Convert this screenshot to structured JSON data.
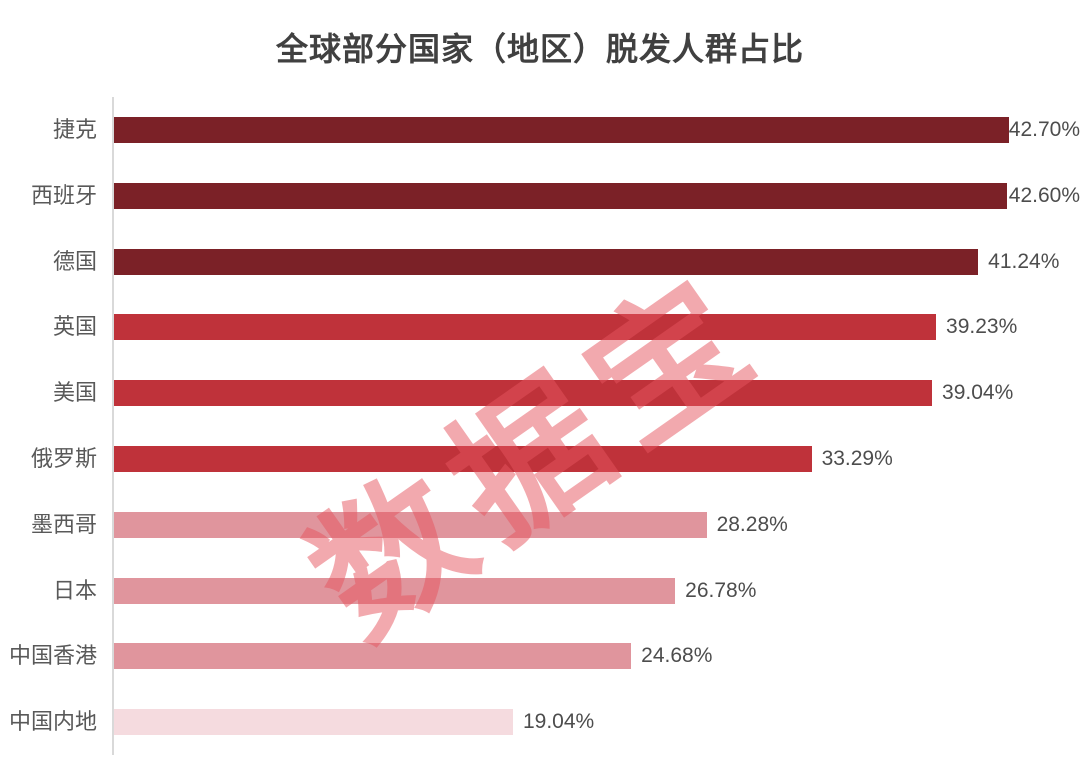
{
  "title": "全球部分国家（地区）脱发人群占比",
  "watermark": "数据宝",
  "colors": {
    "title": "#404040",
    "category_label": "#595959",
    "value_label": "#4d4d4d",
    "axis": "#d9d9d9",
    "watermark": "rgba(229,83,93,0.5)"
  },
  "chart_data": {
    "type": "bar",
    "orientation": "horizontal",
    "title": "全球部分国家（地区）脱发人群占比",
    "categories": [
      "捷克",
      "西班牙",
      "德国",
      "英国",
      "美国",
      "俄罗斯",
      "墨西哥",
      "日本",
      "中国香港",
      "中国内地"
    ],
    "values": [
      42.7,
      42.6,
      41.24,
      39.23,
      39.04,
      33.29,
      28.28,
      26.78,
      24.68,
      19.04
    ],
    "value_labels": [
      "42.70%",
      "42.60%",
      "41.24%",
      "39.23%",
      "39.04%",
      "33.29%",
      "28.28%",
      "26.78%",
      "24.68%",
      "19.04%"
    ],
    "bar_colors": [
      "#7b2127",
      "#7b2127",
      "#7b2127",
      "#bf323a",
      "#bf323a",
      "#bf323a",
      "#e0959d",
      "#e0959d",
      "#e0959d",
      "#f5dbdf"
    ],
    "xlabel": "",
    "ylabel": "",
    "xlim": [
      0,
      46.1
    ],
    "grid": false,
    "legend": false,
    "value_label_position": "bar-end"
  }
}
